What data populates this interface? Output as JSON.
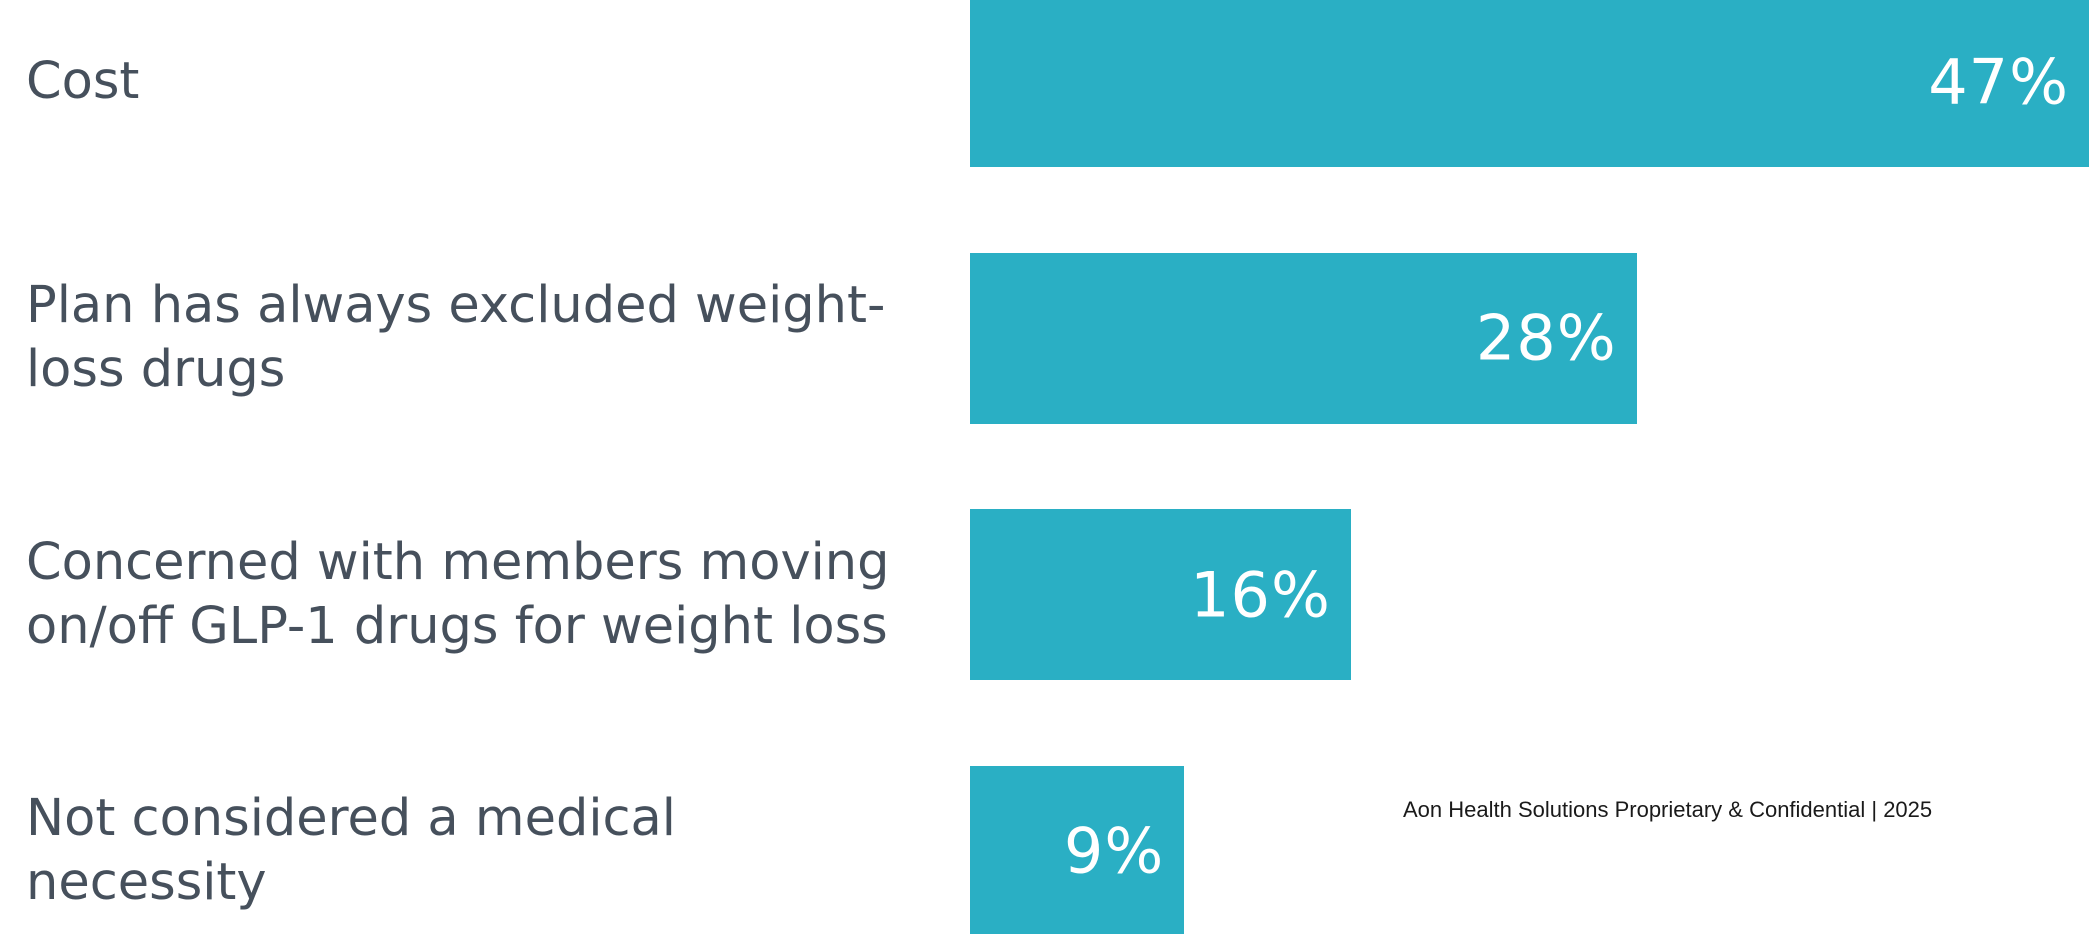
{
  "chart_data": {
    "type": "bar",
    "orientation": "horizontal",
    "categories": [
      "Cost",
      "Plan has always excluded weight-\nloss drugs",
      "Concerned with members moving\non/off GLP-1 drugs for weight loss",
      "Not considered a medical\nnecessity"
    ],
    "values": [
      47,
      28,
      16,
      9
    ],
    "value_labels": [
      "47%",
      "28%",
      "16%",
      "9%"
    ],
    "title": "",
    "xlabel": "",
    "ylabel": "",
    "grid": false,
    "bar_color": "#2aafc4"
  },
  "footer": {
    "text": "Aon Health Solutions Proprietary & Confidential | 2025"
  }
}
